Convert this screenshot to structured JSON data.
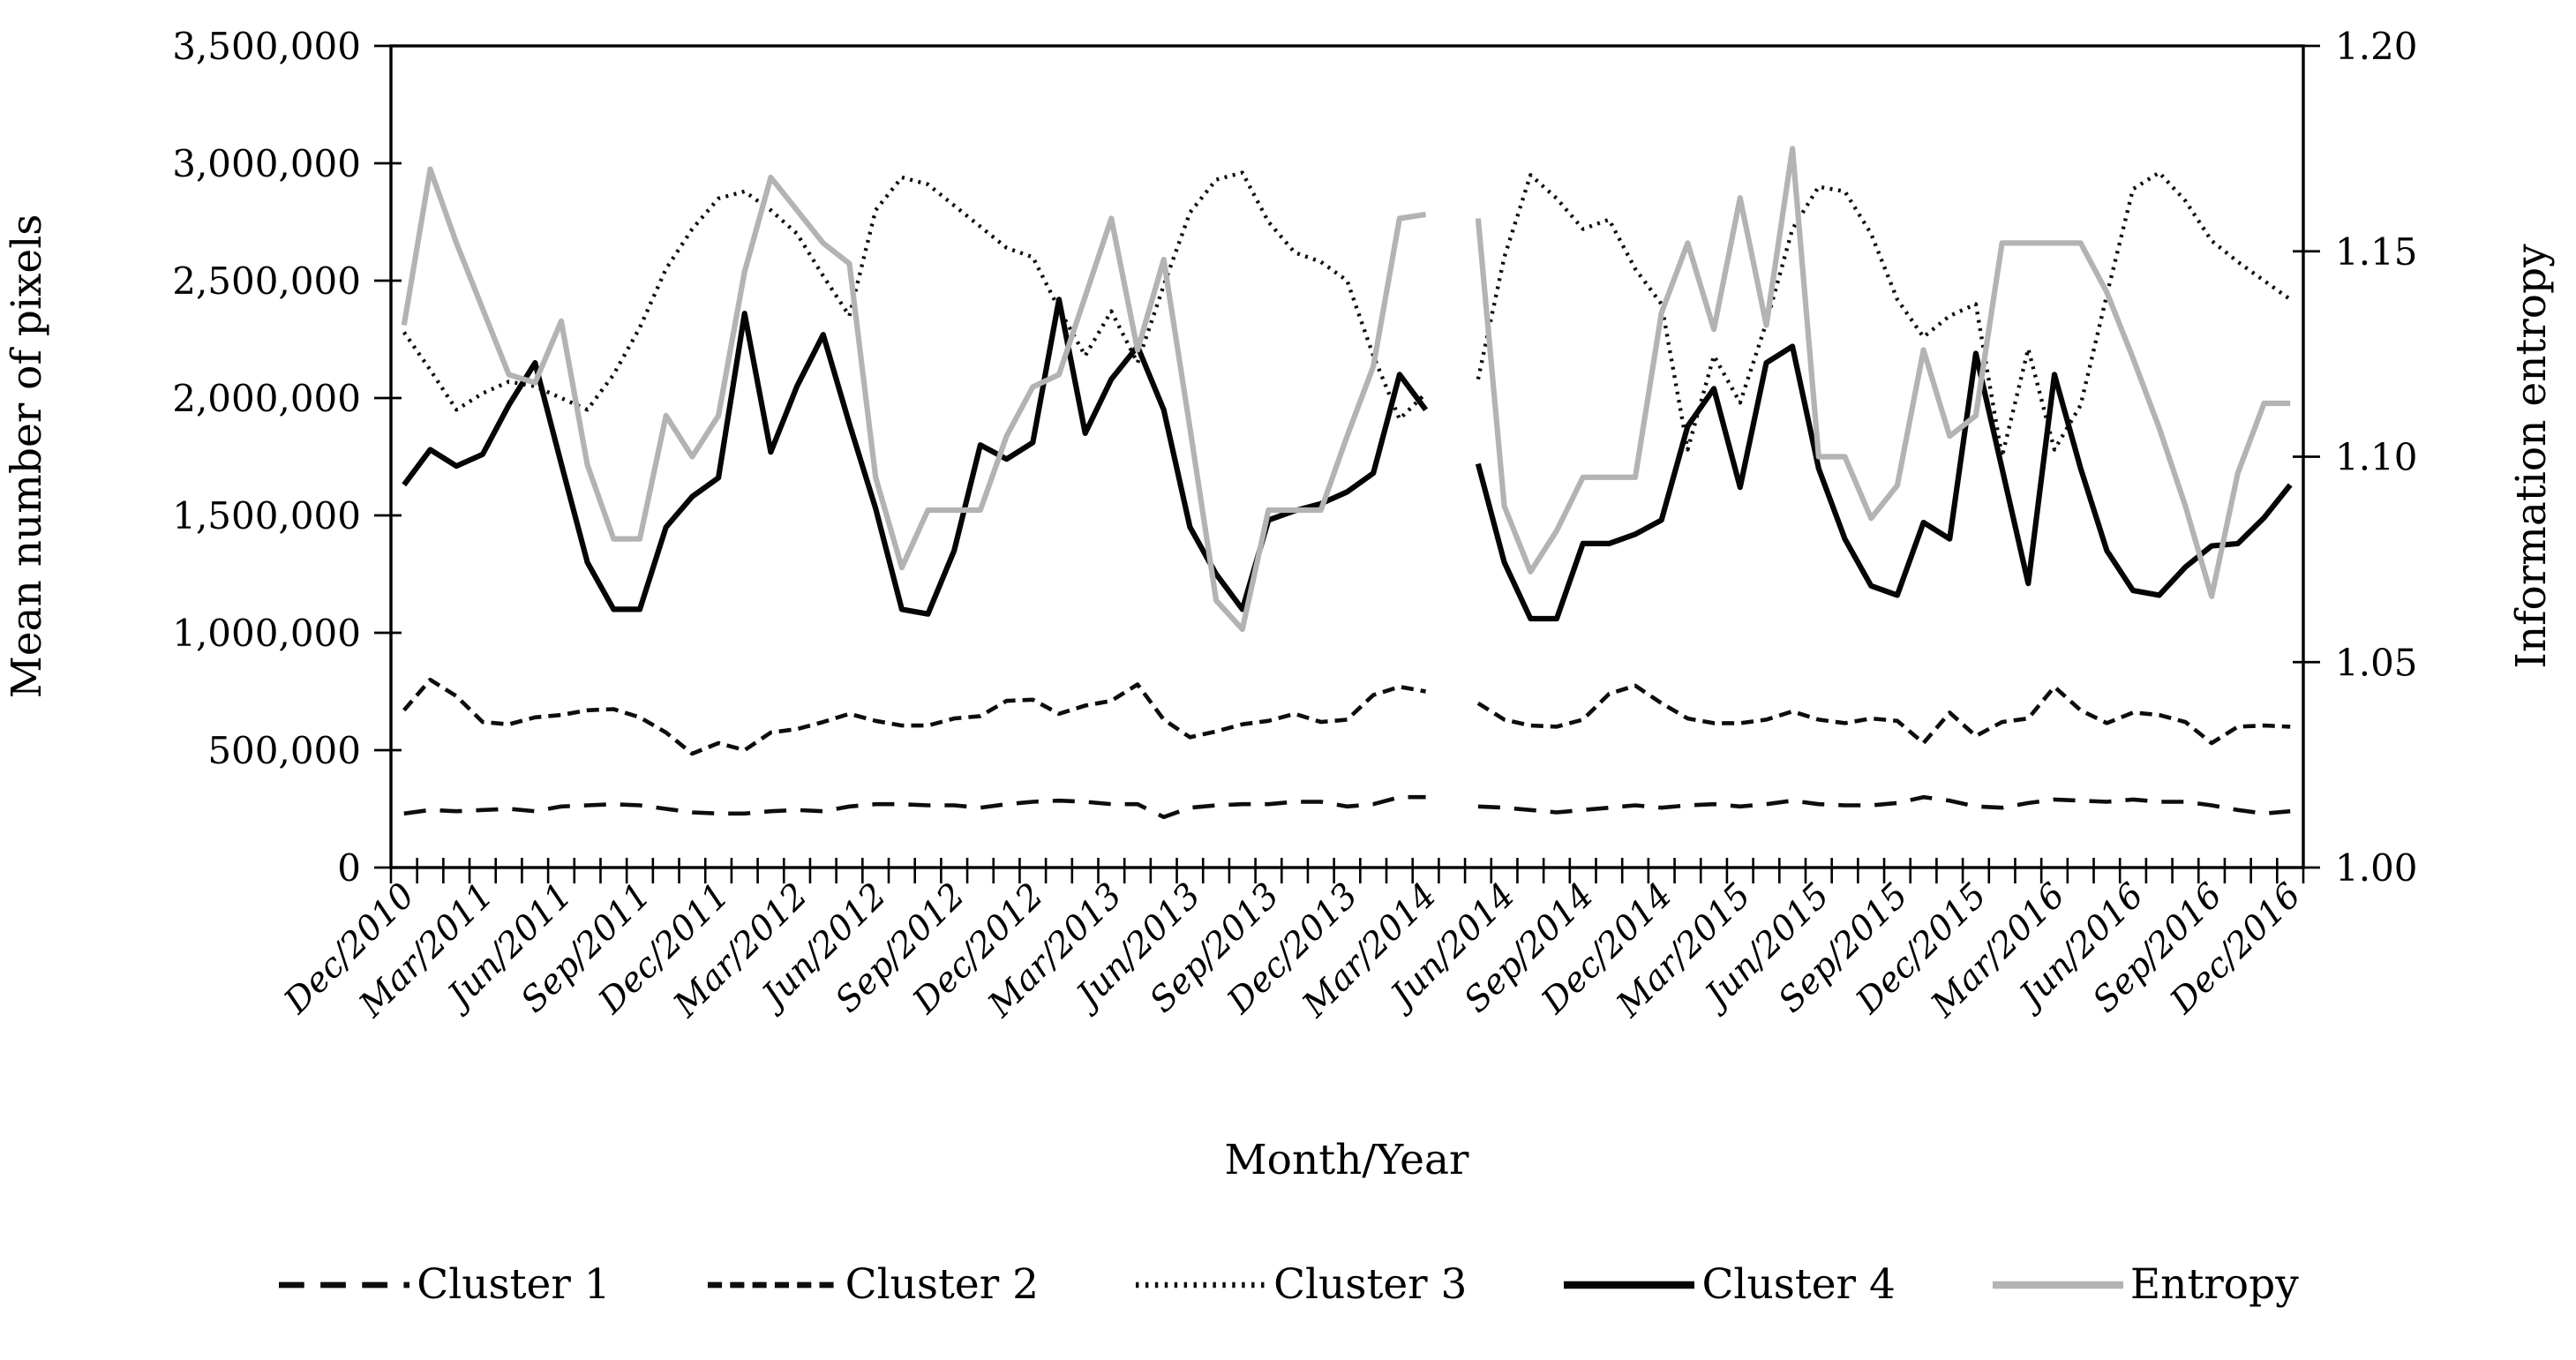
{
  "figure": {
    "type_note": "dual-axis monthly line chart",
    "background": "#ffffff",
    "axis_color": "#000000"
  },
  "axes": {
    "left": {
      "title": "Mean number of pixels",
      "tick_labels": [
        "3,500,000",
        "3,000,000",
        "2,500,000",
        "2,000,000",
        "1,500,000",
        "1,000,000",
        "500,000",
        "0"
      ],
      "range": [
        0,
        3500000
      ]
    },
    "right": {
      "title": "Information entropy",
      "tick_labels": [
        "1.20",
        "1.15",
        "1.10",
        "1.05",
        "1.00"
      ],
      "range": [
        1.0,
        1.2
      ]
    },
    "x": {
      "title": "Month/Year",
      "label_every_n_months": 3,
      "tick_labels": [
        "Dec/2010",
        "Mar/2011",
        "Jun/2011",
        "Sep/2011",
        "Dec/2011",
        "Mar/2012",
        "Jun/2012",
        "Sep/2012",
        "Dec/2012",
        "Mar/2013",
        "Jun/2013",
        "Sep/2013",
        "Dec/2013",
        "Mar/2014",
        "Jun/2014",
        "Sep/2014",
        "Dec/2014",
        "Mar/2015",
        "Jun/2015",
        "Sep/2015",
        "Dec/2015",
        "Mar/2016",
        "Jun/2016",
        "Sep/2016",
        "Dec/2016"
      ]
    }
  },
  "legend": {
    "items": [
      {
        "label": "Cluster 1",
        "series": "cluster1"
      },
      {
        "label": "Cluster 2",
        "series": "cluster2"
      },
      {
        "label": "Cluster 3",
        "series": "cluster3"
      },
      {
        "label": "Cluster 4",
        "series": "cluster4"
      },
      {
        "label": "Entropy",
        "series": "entropy"
      }
    ]
  },
  "series_styles": {
    "cluster1": {
      "color": "#0d0d0d",
      "dash": "25 16",
      "width": 4.6
    },
    "cluster2": {
      "color": "#0d0d0d",
      "dash": "14 8",
      "width": 4.6
    },
    "cluster3": {
      "color": "#0d0d0d",
      "dash": "3 6.5",
      "width": 4.4
    },
    "cluster4": {
      "color": "#050505",
      "dash": "",
      "width": 6.2
    },
    "entropy": {
      "color": "#b3b3b3",
      "dash": "",
      "width": 6.2
    }
  },
  "chart_data": {
    "type": "line",
    "title": "",
    "xlabel": "Month/Year",
    "ylabel_left": "Mean number of pixels",
    "ylabel_right": "Information entropy",
    "ylim_left": [
      0,
      3500000
    ],
    "ylim_right": [
      1.0,
      1.2
    ],
    "grid": false,
    "legend_position": "bottom",
    "missing_month": "Apr/2014",
    "x": [
      "Dec/2010",
      "Jan/2011",
      "Feb/2011",
      "Mar/2011",
      "Apr/2011",
      "May/2011",
      "Jun/2011",
      "Jul/2011",
      "Aug/2011",
      "Sep/2011",
      "Oct/2011",
      "Nov/2011",
      "Dec/2011",
      "Jan/2012",
      "Feb/2012",
      "Mar/2012",
      "Apr/2012",
      "May/2012",
      "Jun/2012",
      "Jul/2012",
      "Aug/2012",
      "Sep/2012",
      "Oct/2012",
      "Nov/2012",
      "Dec/2012",
      "Jan/2013",
      "Feb/2013",
      "Mar/2013",
      "Apr/2013",
      "May/2013",
      "Jun/2013",
      "Jul/2013",
      "Aug/2013",
      "Sep/2013",
      "Oct/2013",
      "Nov/2013",
      "Dec/2013",
      "Jan/2014",
      "Feb/2014",
      "Mar/2014",
      "Apr/2014",
      "May/2014",
      "Jun/2014",
      "Jul/2014",
      "Aug/2014",
      "Sep/2014",
      "Oct/2014",
      "Nov/2014",
      "Dec/2014",
      "Jan/2015",
      "Feb/2015",
      "Mar/2015",
      "Apr/2015",
      "May/2015",
      "Jun/2015",
      "Jul/2015",
      "Aug/2015",
      "Sep/2015",
      "Oct/2015",
      "Nov/2015",
      "Dec/2015",
      "Jan/2016",
      "Feb/2016",
      "Mar/2016",
      "Apr/2016",
      "May/2016",
      "Jun/2016",
      "Jul/2016",
      "Aug/2016",
      "Sep/2016",
      "Oct/2016",
      "Nov/2016",
      "Dec/2016"
    ],
    "series": [
      {
        "name": "Cluster 1",
        "key": "cluster1",
        "axis": "left",
        "values": [
          230000,
          245000,
          240000,
          245000,
          250000,
          240000,
          260000,
          265000,
          270000,
          265000,
          250000,
          235000,
          230000,
          230000,
          240000,
          245000,
          240000,
          260000,
          270000,
          270000,
          265000,
          265000,
          255000,
          270000,
          280000,
          285000,
          280000,
          270000,
          270000,
          215000,
          255000,
          265000,
          270000,
          270000,
          280000,
          280000,
          260000,
          270000,
          300000,
          300000,
          null,
          260000,
          255000,
          245000,
          235000,
          245000,
          255000,
          265000,
          255000,
          265000,
          270000,
          260000,
          270000,
          285000,
          270000,
          265000,
          265000,
          275000,
          300000,
          285000,
          260000,
          255000,
          275000,
          290000,
          285000,
          280000,
          290000,
          280000,
          280000,
          265000,
          245000,
          230000,
          240000
        ]
      },
      {
        "name": "Cluster 2",
        "key": "cluster2",
        "axis": "left",
        "values": [
          670000,
          800000,
          730000,
          620000,
          610000,
          640000,
          650000,
          670000,
          675000,
          640000,
          575000,
          485000,
          530000,
          500000,
          575000,
          590000,
          620000,
          655000,
          625000,
          605000,
          605000,
          635000,
          645000,
          710000,
          715000,
          655000,
          690000,
          710000,
          780000,
          630000,
          555000,
          580000,
          610000,
          625000,
          655000,
          620000,
          630000,
          735000,
          770000,
          750000,
          null,
          700000,
          630000,
          605000,
          600000,
          630000,
          740000,
          775000,
          700000,
          635000,
          615000,
          615000,
          630000,
          665000,
          630000,
          615000,
          635000,
          625000,
          530000,
          660000,
          560000,
          620000,
          635000,
          770000,
          670000,
          615000,
          660000,
          650000,
          620000,
          530000,
          600000,
          605000,
          600000
        ]
      },
      {
        "name": "Cluster 3",
        "key": "cluster3",
        "axis": "left",
        "values": [
          2280000,
          2120000,
          1950000,
          2020000,
          2070000,
          2050000,
          2000000,
          1950000,
          2100000,
          2300000,
          2550000,
          2720000,
          2850000,
          2880000,
          2800000,
          2700000,
          2520000,
          2350000,
          2800000,
          2940000,
          2910000,
          2820000,
          2730000,
          2640000,
          2600000,
          2380000,
          2180000,
          2370000,
          2150000,
          2480000,
          2790000,
          2930000,
          2960000,
          2750000,
          2620000,
          2580000,
          2500000,
          2180000,
          1910000,
          2020000,
          null,
          2080000,
          2600000,
          2950000,
          2850000,
          2720000,
          2760000,
          2550000,
          2400000,
          1780000,
          2180000,
          1980000,
          2320000,
          2720000,
          2900000,
          2880000,
          2700000,
          2420000,
          2260000,
          2350000,
          2400000,
          1750000,
          2210000,
          1780000,
          1970000,
          2440000,
          2890000,
          2960000,
          2840000,
          2670000,
          2580000,
          2500000,
          2420000
        ]
      },
      {
        "name": "Cluster 4",
        "key": "cluster4",
        "axis": "left",
        "values": [
          1630000,
          1780000,
          1710000,
          1760000,
          1970000,
          2150000,
          1720000,
          1300000,
          1100000,
          1100000,
          1450000,
          1580000,
          1660000,
          2360000,
          1770000,
          2050000,
          2270000,
          1890000,
          1530000,
          1100000,
          1080000,
          1350000,
          1800000,
          1740000,
          1810000,
          2420000,
          1850000,
          2080000,
          2220000,
          1950000,
          1450000,
          1250000,
          1100000,
          1480000,
          1520000,
          1550000,
          1600000,
          1680000,
          2100000,
          1950000,
          null,
          1720000,
          1300000,
          1060000,
          1060000,
          1380000,
          1380000,
          1420000,
          1480000,
          1880000,
          2040000,
          1620000,
          2150000,
          2220000,
          1700000,
          1400000,
          1200000,
          1160000,
          1470000,
          1400000,
          2190000,
          1700000,
          1210000,
          2100000,
          1700000,
          1350000,
          1180000,
          1160000,
          1280000,
          1370000,
          1380000,
          1490000,
          1630000
        ]
      },
      {
        "name": "Entropy",
        "key": "entropy",
        "axis": "right",
        "values": [
          1.132,
          1.17,
          1.152,
          1.136,
          1.12,
          1.118,
          1.133,
          1.098,
          1.08,
          1.08,
          1.11,
          1.1,
          1.11,
          1.145,
          1.168,
          1.16,
          1.152,
          1.147,
          1.095,
          1.073,
          1.087,
          1.087,
          1.087,
          1.105,
          1.117,
          1.12,
          1.139,
          1.158,
          1.126,
          1.148,
          1.107,
          1.065,
          1.058,
          1.087,
          1.087,
          1.087,
          1.105,
          1.122,
          1.158,
          1.159,
          null,
          1.158,
          1.088,
          1.072,
          1.082,
          1.095,
          1.095,
          1.095,
          1.135,
          1.152,
          1.131,
          1.163,
          1.132,
          1.175,
          1.1,
          1.1,
          1.085,
          1.093,
          1.126,
          1.105,
          1.11,
          1.152,
          1.152,
          1.152,
          1.152,
          1.14,
          1.124,
          1.107,
          1.088,
          1.066,
          1.096,
          1.113,
          1.113
        ]
      }
    ]
  }
}
